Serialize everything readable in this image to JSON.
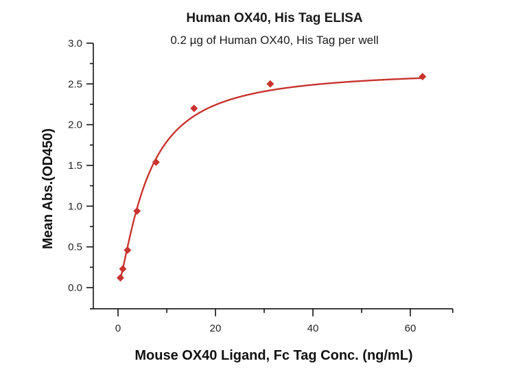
{
  "chart_data": {
    "type": "scatter",
    "title": "Human OX40, His Tag ELISA",
    "subtitle": "0.2 µg of Human OX40, His Tag per well",
    "xlabel": "Mouse OX40 Ligand, Fc Tag Conc. (ng/mL)",
    "ylabel": "Mean Abs.(OD450)",
    "xlim": [
      -5.8,
      68.7
    ],
    "ylim": [
      -0.26,
      3.0
    ],
    "x_ticks": [
      0,
      20,
      40,
      60
    ],
    "x_tick_labels": [
      "0",
      "20",
      "40",
      "60"
    ],
    "x_minor_ticks": [
      10,
      30,
      50,
      70
    ],
    "y_ticks": [
      0.0,
      0.5,
      1.0,
      1.5,
      2.0,
      2.5,
      3.0
    ],
    "y_tick_labels": [
      "0.0",
      "0.5",
      "1.0",
      "1.5",
      "2.0",
      "2.5",
      "3.0"
    ],
    "y_minor_ticks": [
      0.25,
      0.75,
      1.25,
      1.75,
      2.25,
      2.75
    ],
    "grid": false,
    "legend": null,
    "series": [
      {
        "name": "Mouse OX40 Ligand, Fc Tag",
        "marker": "diamond",
        "color": "#c8332f",
        "x": [
          0.49,
          0.98,
          1.95,
          3.9,
          7.8,
          15.6,
          31.25,
          62.5
        ],
        "values": [
          0.12,
          0.23,
          0.46,
          0.94,
          1.54,
          2.2,
          2.5,
          2.59
        ],
        "fit": "4-parameter logistic curve"
      }
    ]
  }
}
